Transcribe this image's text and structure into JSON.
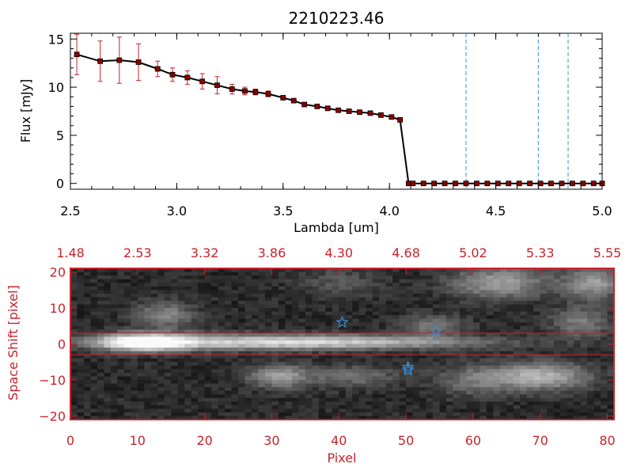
{
  "title": "2210223.46",
  "colors": {
    "axes": "#000000",
    "red": "#c8232c",
    "errorbar": "#c8232c",
    "marker": "#8b0000",
    "vline": "#3a8fd8",
    "star": "#3a8fd8",
    "image_bg": "#050505"
  },
  "chart_data": [
    {
      "type": "line",
      "title": "2210223.46",
      "xlabel": "Lambda [um]",
      "ylabel": "Flux [mJy]",
      "xlim": [
        2.5,
        5.0
      ],
      "ylim": [
        -0.6,
        15.6
      ],
      "xticks": [
        2.5,
        3.0,
        3.5,
        4.0,
        4.5,
        5.0
      ],
      "xtick_labels": [
        "2.5",
        "3.0",
        "3.5",
        "4.0",
        "4.5",
        "5.0"
      ],
      "yticks": [
        0,
        5,
        10,
        15
      ],
      "ytick_labels": [
        "0",
        "5",
        "10",
        "15"
      ],
      "vertical_lines_x": [
        4.36,
        4.7,
        4.84
      ],
      "series": [
        {
          "name": "flux",
          "x": [
            2.53,
            2.64,
            2.73,
            2.82,
            2.91,
            2.98,
            3.05,
            3.12,
            3.19,
            3.26,
            3.32,
            3.37,
            3.43,
            3.5,
            3.55,
            3.6,
            3.66,
            3.71,
            3.76,
            3.81,
            3.86,
            3.91,
            3.96,
            4.01,
            4.05,
            4.09,
            4.11,
            4.16,
            4.21,
            4.26,
            4.31,
            4.36,
            4.41,
            4.46,
            4.51,
            4.56,
            4.61,
            4.66,
            4.71,
            4.76,
            4.81,
            4.86,
            4.91,
            4.96,
            5.0
          ],
          "y": [
            13.4,
            12.7,
            12.8,
            12.6,
            11.9,
            11.3,
            11.0,
            10.6,
            10.2,
            9.8,
            9.6,
            9.5,
            9.3,
            8.9,
            8.6,
            8.2,
            8.0,
            7.8,
            7.6,
            7.5,
            7.4,
            7.3,
            7.1,
            6.9,
            6.6,
            0.0,
            0.0,
            0.0,
            0.0,
            0.0,
            0.0,
            0.0,
            0.0,
            0.0,
            0.0,
            0.0,
            0.0,
            0.0,
            0.0,
            0.0,
            0.0,
            0.0,
            0.0,
            0.0,
            0.0
          ],
          "yerr": [
            2.1,
            2.1,
            2.4,
            1.9,
            0.8,
            0.7,
            0.7,
            0.8,
            0.9,
            0.5,
            0.4,
            0.3,
            0.3,
            0.2,
            0.2,
            0.2,
            0.2,
            0.2,
            0.2,
            0.2,
            0.2,
            0.2,
            0.2,
            0.2,
            0.2,
            0.0,
            0.0,
            0.0,
            0.0,
            0.0,
            0.0,
            0.0,
            0.0,
            0.0,
            0.0,
            0.0,
            0.0,
            0.0,
            0.0,
            0.0,
            0.0,
            0.0,
            0.0,
            0.0,
            0.0
          ]
        }
      ]
    },
    {
      "type": "heatmap",
      "xlabel": "Pixel",
      "ylabel": "Space Shift [pixel]",
      "xlim": [
        0,
        81
      ],
      "ylim": [
        -21,
        21
      ],
      "xticks": [
        0,
        10,
        20,
        30,
        40,
        50,
        60,
        70,
        80
      ],
      "xtick_labels": [
        "0",
        "10",
        "20",
        "30",
        "40",
        "50",
        "60",
        "70",
        "80"
      ],
      "yticks": [
        -20,
        -10,
        0,
        10,
        20
      ],
      "ytick_labels": [
        "−20",
        "−10",
        "0",
        "10",
        "20"
      ],
      "top_axis_ticks": [
        0,
        10,
        20,
        30,
        40,
        50,
        60,
        70,
        80
      ],
      "top_axis_labels": [
        "1.48",
        "2.53",
        "3.32",
        "3.86",
        "4.30",
        "4.68",
        "5.02",
        "5.33",
        "5.55"
      ],
      "extraction_aperture_y": [
        -3,
        3
      ],
      "stars": [
        {
          "x": 40.5,
          "y": 6
        },
        {
          "x": 54.5,
          "y": 3.5
        },
        {
          "x": 50.3,
          "y": -6.5
        },
        {
          "x": 50.3,
          "y": -7.2
        }
      ],
      "blobs": [
        {
          "x": 11,
          "y": 0.5,
          "sx": 4.5,
          "sy": 1.6,
          "v": 1.0
        },
        {
          "x": 25,
          "y": 0.5,
          "sx": 14,
          "sy": 1.5,
          "v": 0.55
        },
        {
          "x": 45,
          "y": 0.5,
          "sx": 14,
          "sy": 1.3,
          "v": 0.4
        },
        {
          "x": 14,
          "y": 8,
          "sx": 3,
          "sy": 2.5,
          "v": 0.35
        },
        {
          "x": 31,
          "y": -9,
          "sx": 3,
          "sy": 2.2,
          "v": 0.45
        },
        {
          "x": 70,
          "y": -9,
          "sx": 5,
          "sy": 2.6,
          "v": 0.55
        },
        {
          "x": 64,
          "y": 17,
          "sx": 5,
          "sy": 3,
          "v": 0.45
        },
        {
          "x": 78,
          "y": 17,
          "sx": 3,
          "sy": 3,
          "v": 0.45
        },
        {
          "x": 54,
          "y": 5,
          "sx": 3,
          "sy": 2,
          "v": 0.3
        },
        {
          "x": 76,
          "y": 6,
          "sx": 3,
          "sy": 3,
          "v": 0.3
        },
        {
          "x": 42,
          "y": -9,
          "sx": 5,
          "sy": 2,
          "v": 0.25
        },
        {
          "x": 60,
          "y": -10,
          "sx": 4,
          "sy": 3,
          "v": 0.25
        },
        {
          "x": 40,
          "y": 17,
          "sx": 4,
          "sy": 3,
          "v": 0.15
        }
      ]
    }
  ]
}
